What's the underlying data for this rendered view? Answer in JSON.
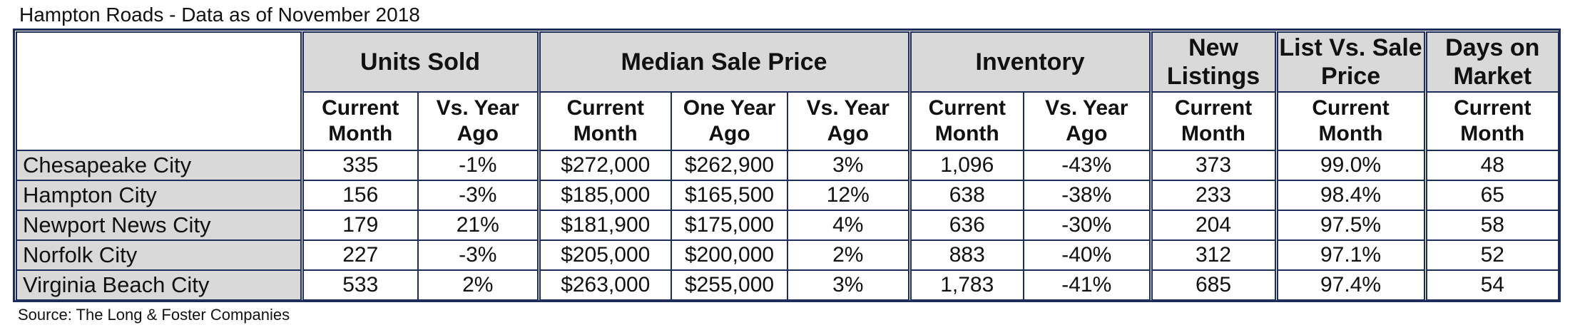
{
  "title": "Hampton Roads - Data as of November 2018",
  "source": "Source: The Long & Foster Companies",
  "colors": {
    "border": "#1f2d5a",
    "header_bg": "#d9d9d9",
    "city_bg": "#d9d9d9"
  },
  "groups": {
    "units_sold": "Units Sold",
    "median_sale_price": "Median Sale Price",
    "inventory": "Inventory",
    "new_listings": "New Listings",
    "list_vs_sale": "List Vs. Sale Price",
    "days_on_market": "Days on Market"
  },
  "subheaders": {
    "current_month": "Current Month",
    "vs_year_ago": "Vs. Year Ago",
    "one_year_ago": "One Year Ago"
  },
  "rows": [
    {
      "city": "Chesapeake City",
      "units_current": "335",
      "units_vs": "-1%",
      "price_current": "$272,000",
      "price_year_ago": "$262,900",
      "price_vs": "3%",
      "inv_current": "1,096",
      "inv_vs": "-43%",
      "new_listings": "373",
      "list_vs_sale": "99.0%",
      "dom": "48"
    },
    {
      "city": "Hampton City",
      "units_current": "156",
      "units_vs": "-3%",
      "price_current": "$185,000",
      "price_year_ago": "$165,500",
      "price_vs": "12%",
      "inv_current": "638",
      "inv_vs": "-38%",
      "new_listings": "233",
      "list_vs_sale": "98.4%",
      "dom": "65"
    },
    {
      "city": "Newport News City",
      "units_current": "179",
      "units_vs": "21%",
      "price_current": "$181,900",
      "price_year_ago": "$175,000",
      "price_vs": "4%",
      "inv_current": "636",
      "inv_vs": "-30%",
      "new_listings": "204",
      "list_vs_sale": "97.5%",
      "dom": "58"
    },
    {
      "city": "Norfolk City",
      "units_current": "227",
      "units_vs": "-3%",
      "price_current": "$205,000",
      "price_year_ago": "$200,000",
      "price_vs": "2%",
      "inv_current": "883",
      "inv_vs": "-40%",
      "new_listings": "312",
      "list_vs_sale": "97.1%",
      "dom": "52"
    },
    {
      "city": "Virginia Beach City",
      "units_current": "533",
      "units_vs": "2%",
      "price_current": "$263,000",
      "price_year_ago": "$255,000",
      "price_vs": "3%",
      "inv_current": "1,783",
      "inv_vs": "-41%",
      "new_listings": "685",
      "list_vs_sale": "97.4%",
      "dom": "54"
    }
  ]
}
